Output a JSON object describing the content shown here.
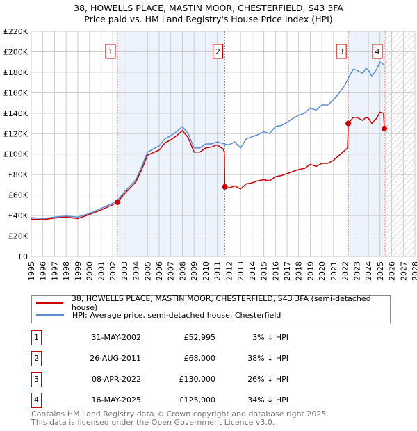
{
  "chart_data": {
    "type": "line",
    "title": "38, HOWELLS PLACE, MASTIN MOOR, CHESTERFIELD, S43 3FA",
    "subtitle": "Price paid vs. HM Land Registry's House Price Index (HPI)",
    "xlim": [
      1995,
      2028
    ],
    "ylim": [
      0,
      220000
    ],
    "x_ticks": [
      "1995",
      "1996",
      "1997",
      "1998",
      "1999",
      "2000",
      "2001",
      "2002",
      "2003",
      "2004",
      "2005",
      "2006",
      "2007",
      "2008",
      "2009",
      "2010",
      "2011",
      "2012",
      "2013",
      "2014",
      "2015",
      "2016",
      "2017",
      "2018",
      "2019",
      "2020",
      "2021",
      "2022",
      "2023",
      "2024",
      "2025",
      "2026",
      "2027",
      "2028"
    ],
    "y_ticks": [
      {
        "v": 0,
        "l": "£0"
      },
      {
        "v": 20000,
        "l": "£20K"
      },
      {
        "v": 40000,
        "l": "£40K"
      },
      {
        "v": 60000,
        "l": "£60K"
      },
      {
        "v": 80000,
        "l": "£80K"
      },
      {
        "v": 100000,
        "l": "£100K"
      },
      {
        "v": 120000,
        "l": "£120K"
      },
      {
        "v": 140000,
        "l": "£140K"
      },
      {
        "v": 160000,
        "l": "£160K"
      },
      {
        "v": 180000,
        "l": "£180K"
      },
      {
        "v": 200000,
        "l": "£200K"
      },
      {
        "v": 220000,
        "l": "£220K"
      }
    ],
    "grid": true,
    "series": [
      {
        "name": "38, HOWELLS PLACE, MASTIN MOOR, CHESTERFIELD, S43 3FA (semi-detached house)",
        "color": "#cc0000",
        "x": [
          1995,
          1996,
          1997,
          1998,
          1999,
          2000,
          2001,
          2002,
          2002.41,
          2003,
          2004,
          2004.5,
          2005,
          2006,
          2006.5,
          2007,
          2007.5,
          2008,
          2008.5,
          2009,
          2009.5,
          2010,
          2010.5,
          2011,
          2011.5,
          2011.6,
          2011.65,
          2012,
          2012.5,
          2013,
          2013.5,
          2014,
          2014.5,
          2015,
          2015.5,
          2016,
          2016.5,
          2017,
          2017.5,
          2018,
          2018.5,
          2019,
          2019.5,
          2020,
          2020.5,
          2021,
          2021.5,
          2022,
          2022.2,
          2022.27,
          2022.7,
          2023,
          2023.5,
          2023.8,
          2024,
          2024.3,
          2024.7,
          2025,
          2025.3,
          2025.37
        ],
        "y": [
          36500,
          36000,
          37500,
          38500,
          37000,
          41000,
          45500,
          50500,
          52995,
          61000,
          73000,
          85000,
          99000,
          104000,
          111000,
          114000,
          118000,
          123000,
          116000,
          102000,
          102000,
          106000,
          107000,
          109000,
          105000,
          102000,
          68000,
          67000,
          69000,
          66000,
          71000,
          72000,
          74000,
          75000,
          74000,
          78000,
          79000,
          81000,
          83000,
          85000,
          86000,
          90000,
          88000,
          91000,
          91000,
          94000,
          99000,
          104000,
          106000,
          130000,
          136000,
          136000,
          133000,
          136000,
          135000,
          130000,
          135000,
          141000,
          140000,
          125000
        ]
      },
      {
        "name": "HPI: Average price, semi-detached house, Chesterfield",
        "color": "#5b8fd0",
        "x": [
          1995,
          1996,
          1997,
          1998,
          1999,
          2000,
          2001,
          2002,
          2002.5,
          2003,
          2004,
          2004.5,
          2005,
          2006,
          2006.5,
          2007,
          2007.5,
          2008,
          2008.5,
          2009,
          2009.5,
          2010,
          2010.5,
          2011,
          2011.6,
          2012,
          2012.5,
          2013,
          2013.5,
          2014,
          2014.5,
          2015,
          2015.5,
          2016,
          2016.5,
          2017,
          2017.5,
          2018,
          2018.5,
          2019,
          2019.5,
          2020,
          2020.5,
          2021,
          2021.5,
          2022,
          2022.3,
          2022.7,
          2023,
          2023.5,
          2023.8,
          2024,
          2024.3,
          2024.7,
          2025,
          2025.4
        ],
        "y": [
          38000,
          37000,
          38500,
          39500,
          38500,
          42000,
          47000,
          52000,
          56000,
          63000,
          75000,
          88000,
          102000,
          108000,
          115000,
          118000,
          122000,
          127000,
          120000,
          106000,
          106000,
          110000,
          110000,
          112000,
          110000,
          109000,
          112000,
          106000,
          115000,
          117000,
          119000,
          122000,
          120000,
          127000,
          128000,
          131000,
          135000,
          138000,
          140000,
          145000,
          143000,
          148000,
          148000,
          153000,
          160000,
          168000,
          175000,
          183000,
          182000,
          179000,
          184000,
          182000,
          176000,
          183000,
          190000,
          187000
        ]
      }
    ],
    "sales": [
      {
        "label": "1",
        "x": 2002.41,
        "y": 52995
      },
      {
        "label": "2",
        "x": 2011.65,
        "y": 68000
      },
      {
        "label": "3",
        "x": 2022.27,
        "y": 130000
      },
      {
        "label": "4",
        "x": 2025.37,
        "y": 125000
      }
    ],
    "shaded": [
      [
        2002.41,
        2011.65
      ],
      [
        2022.27,
        2025.37
      ]
    ],
    "forecast_hatch": [
      2025.5,
      2028
    ]
  },
  "legend": {
    "property": "38, HOWELLS PLACE, MASTIN MOOR, CHESTERFIELD, S43 3FA (semi-detached house)",
    "hpi": "HPI: Average price, semi-detached house, Chesterfield"
  },
  "table": [
    {
      "num": "1",
      "date": "31-MAY-2002",
      "price": "£52,995",
      "hpi": "3% ↓ HPI"
    },
    {
      "num": "2",
      "date": "26-AUG-2011",
      "price": "£68,000",
      "hpi": "38% ↓ HPI"
    },
    {
      "num": "3",
      "date": "08-APR-2022",
      "price": "£130,000",
      "hpi": "26% ↓ HPI"
    },
    {
      "num": "4",
      "date": "16-MAY-2025",
      "price": "£125,000",
      "hpi": "34% ↓ HPI"
    }
  ],
  "footer": {
    "line1": "Contains HM Land Registry data © Crown copyright and database right 2025.",
    "line2": "This data is licensed under the Open Government Licence v3.0."
  }
}
